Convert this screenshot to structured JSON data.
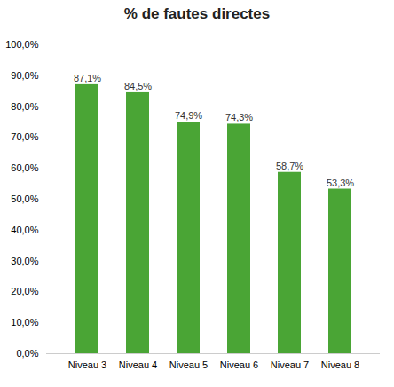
{
  "chart_data": {
    "type": "bar",
    "title": "% de fautes directes",
    "categories": [
      "Niveau 3",
      "Niveau 4",
      "Niveau 5",
      "Niveau 6",
      "Niveau 7",
      "Niveau 8"
    ],
    "values": [
      0.871,
      0.845,
      0.749,
      0.743,
      0.587,
      0.533
    ],
    "value_labels": [
      "87,1%",
      "84,5%",
      "74,9%",
      "74,3%",
      "58,7%",
      "53,3%"
    ],
    "data_labels": true,
    "color": "#4aa535",
    "ylim": [
      0,
      1.0
    ],
    "yticks": [
      {
        "value": 0.0,
        "label": "0,0%"
      },
      {
        "value": 0.1,
        "label": "10,0%"
      },
      {
        "value": 0.2,
        "label": "20,0%"
      },
      {
        "value": 0.3,
        "label": "30,0%"
      },
      {
        "value": 0.4,
        "label": "40,0%"
      },
      {
        "value": 0.5,
        "label": "50,0%"
      },
      {
        "value": 0.6,
        "label": "60,0%"
      },
      {
        "value": 0.7,
        "label": "70,0%"
      },
      {
        "value": 0.8,
        "label": "80,0%"
      },
      {
        "value": 0.9,
        "label": "90,0%"
      },
      {
        "value": 1.0,
        "label": "100,0%"
      }
    ],
    "grid": false
  }
}
